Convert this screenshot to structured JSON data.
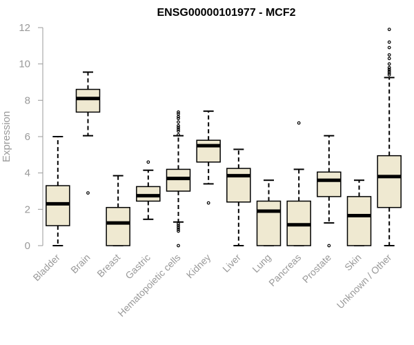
{
  "chart_data": {
    "type": "boxplot",
    "title": "ENSG00000101977 - MCF2",
    "ylabel": "Expression",
    "xlabel": "",
    "ylim": [
      0,
      12
    ],
    "yticks": [
      0,
      2,
      4,
      6,
      8,
      10,
      12
    ],
    "colors": {
      "box_fill": "#efe9d1",
      "stroke": "#000000",
      "axis_text": "#999999"
    },
    "categories": [
      "Bladder",
      "Brain",
      "Breast",
      "Gastric",
      "Hematopoietic cells",
      "Kidney",
      "Liver",
      "Lung",
      "Pancreas",
      "Prostate",
      "Skin",
      "Unknown / Other"
    ],
    "boxes": [
      {
        "name": "Bladder",
        "min": 0,
        "q1": 1.1,
        "median": 2.3,
        "q3": 3.3,
        "max": 6.0,
        "outliers": []
      },
      {
        "name": "Brain",
        "min": 6.05,
        "q1": 7.35,
        "median": 8.1,
        "q3": 8.6,
        "max": 9.55,
        "outliers": [
          2.9
        ]
      },
      {
        "name": "Breast",
        "min": 0,
        "q1": 0,
        "median": 1.25,
        "q3": 2.1,
        "max": 3.85,
        "outliers": []
      },
      {
        "name": "Gastric",
        "min": 1.45,
        "q1": 2.45,
        "median": 2.75,
        "q3": 3.25,
        "max": 4.15,
        "outliers": [
          4.6
        ]
      },
      {
        "name": "Hematopoietic cells",
        "min": 1.3,
        "q1": 3.0,
        "median": 3.7,
        "q3": 4.2,
        "max": 6.05,
        "outliers": [
          0,
          0.8,
          0.9,
          1.0,
          1.1,
          1.2,
          6.1,
          6.3,
          6.4,
          6.5,
          6.6,
          6.8,
          7.0,
          7.1,
          7.25,
          7.35
        ]
      },
      {
        "name": "Kidney",
        "min": 3.4,
        "q1": 4.6,
        "median": 5.5,
        "q3": 5.8,
        "max": 7.4,
        "outliers": [
          2.35
        ]
      },
      {
        "name": "Liver",
        "min": 0,
        "q1": 2.4,
        "median": 3.85,
        "q3": 4.25,
        "max": 5.3,
        "outliers": []
      },
      {
        "name": "Lung",
        "min": 0,
        "q1": 0,
        "median": 1.9,
        "q3": 2.45,
        "max": 3.6,
        "outliers": []
      },
      {
        "name": "Pancreas",
        "min": 0,
        "q1": 0,
        "median": 1.15,
        "q3": 2.45,
        "max": 4.2,
        "outliers": [
          6.75
        ]
      },
      {
        "name": "Prostate",
        "min": 1.25,
        "q1": 2.7,
        "median": 3.6,
        "q3": 4.05,
        "max": 6.05,
        "outliers": [
          0
        ]
      },
      {
        "name": "Skin",
        "min": 0,
        "q1": 0,
        "median": 1.65,
        "q3": 2.7,
        "max": 3.6,
        "outliers": []
      },
      {
        "name": "Unknown / Other",
        "min": 0,
        "q1": 2.1,
        "median": 3.8,
        "q3": 4.95,
        "max": 9.25,
        "outliers": [
          9.4,
          9.5,
          9.6,
          9.7,
          9.8,
          10.0,
          10.3,
          10.5,
          10.9,
          11.2,
          11.9
        ]
      }
    ]
  }
}
